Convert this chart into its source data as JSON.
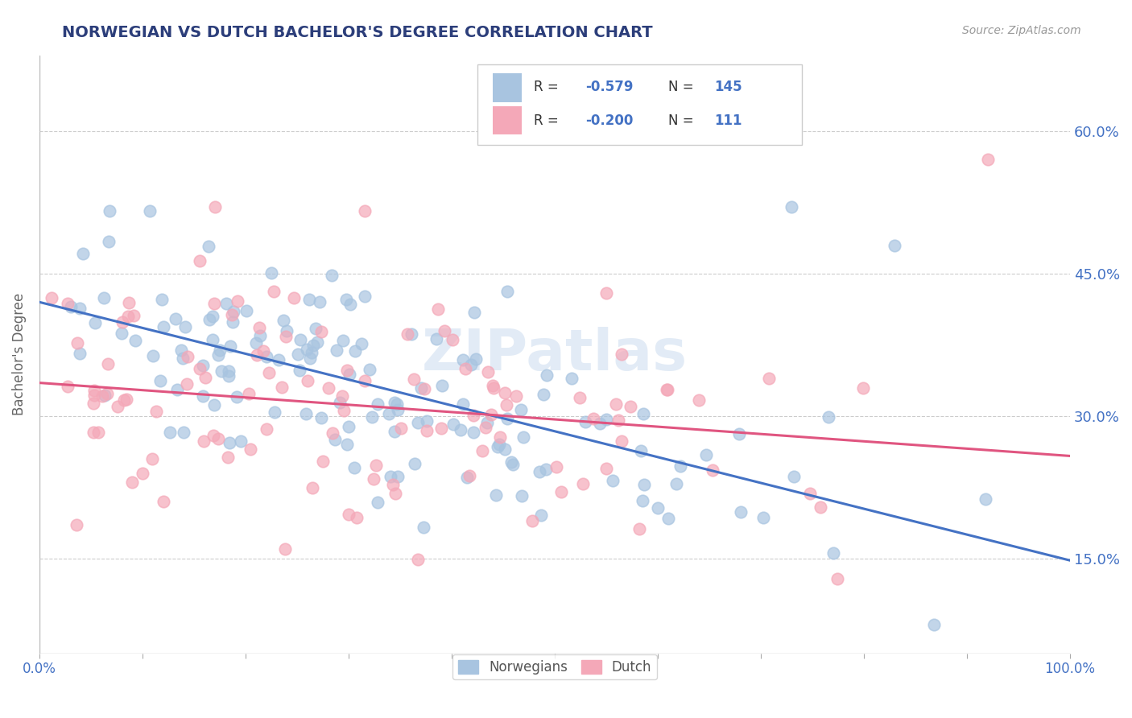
{
  "title": "NORWEGIAN VS DUTCH BACHELOR'S DEGREE CORRELATION CHART",
  "source": "Source: ZipAtlas.com",
  "ylabel": "Bachelor's Degree",
  "xlim": [
    0.0,
    1.0
  ],
  "ylim": [
    0.05,
    0.68
  ],
  "x_ticks": [
    0.0,
    0.1,
    0.2,
    0.3,
    0.4,
    0.5,
    0.6,
    0.7,
    0.8,
    0.9,
    1.0
  ],
  "y_ticks": [
    0.15,
    0.3,
    0.45,
    0.6
  ],
  "y_tick_labels": [
    "15.0%",
    "30.0%",
    "45.0%",
    "60.0%"
  ],
  "norwegian_color": "#a8c4e0",
  "dutch_color": "#f4a8b8",
  "norwegian_line_color": "#4472c4",
  "dutch_line_color": "#e05580",
  "norwegian_R": -0.579,
  "norwegian_N": 145,
  "dutch_R": -0.2,
  "dutch_N": 111,
  "legend_norwegian_label": "Norwegians",
  "legend_dutch_label": "Dutch",
  "watermark": "ZIPatlas",
  "grid_color": "#cccccc",
  "background_color": "#ffffff",
  "title_color": "#2c3e7a",
  "axis_color": "#4472c4",
  "seed": 42,
  "nor_line_start_y": 0.42,
  "nor_line_end_y": 0.148,
  "dut_line_start_y": 0.335,
  "dut_line_end_y": 0.258
}
